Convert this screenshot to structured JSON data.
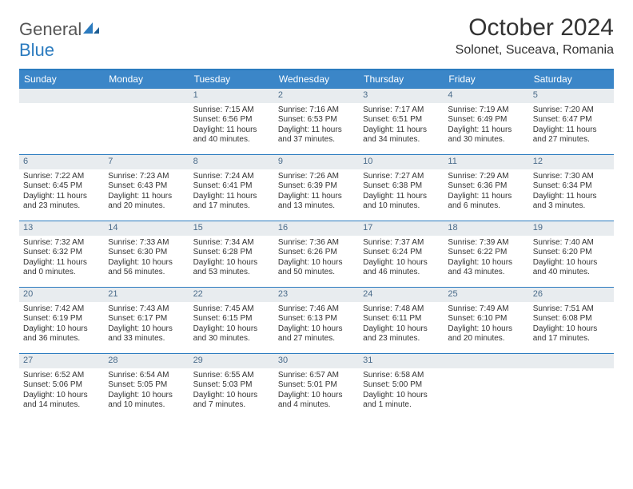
{
  "logo": {
    "text1": "General",
    "text2": "Blue"
  },
  "title": "October 2024",
  "location": "Solonet, Suceava, Romania",
  "colors": {
    "header_bg": "#3b86c8",
    "border": "#2b7bbf",
    "daynum_bg": "#e8ecef",
    "daynum_color": "#4a6b8a",
    "text": "#333333",
    "logo_gray": "#555555",
    "logo_blue": "#2b7bbf"
  },
  "day_headers": [
    "Sunday",
    "Monday",
    "Tuesday",
    "Wednesday",
    "Thursday",
    "Friday",
    "Saturday"
  ],
  "weeks": [
    [
      null,
      null,
      {
        "n": "1",
        "sunrise": "7:15 AM",
        "sunset": "6:56 PM",
        "dl": "11 hours and 40 minutes."
      },
      {
        "n": "2",
        "sunrise": "7:16 AM",
        "sunset": "6:53 PM",
        "dl": "11 hours and 37 minutes."
      },
      {
        "n": "3",
        "sunrise": "7:17 AM",
        "sunset": "6:51 PM",
        "dl": "11 hours and 34 minutes."
      },
      {
        "n": "4",
        "sunrise": "7:19 AM",
        "sunset": "6:49 PM",
        "dl": "11 hours and 30 minutes."
      },
      {
        "n": "5",
        "sunrise": "7:20 AM",
        "sunset": "6:47 PM",
        "dl": "11 hours and 27 minutes."
      }
    ],
    [
      {
        "n": "6",
        "sunrise": "7:22 AM",
        "sunset": "6:45 PM",
        "dl": "11 hours and 23 minutes."
      },
      {
        "n": "7",
        "sunrise": "7:23 AM",
        "sunset": "6:43 PM",
        "dl": "11 hours and 20 minutes."
      },
      {
        "n": "8",
        "sunrise": "7:24 AM",
        "sunset": "6:41 PM",
        "dl": "11 hours and 17 minutes."
      },
      {
        "n": "9",
        "sunrise": "7:26 AM",
        "sunset": "6:39 PM",
        "dl": "11 hours and 13 minutes."
      },
      {
        "n": "10",
        "sunrise": "7:27 AM",
        "sunset": "6:38 PM",
        "dl": "11 hours and 10 minutes."
      },
      {
        "n": "11",
        "sunrise": "7:29 AM",
        "sunset": "6:36 PM",
        "dl": "11 hours and 6 minutes."
      },
      {
        "n": "12",
        "sunrise": "7:30 AM",
        "sunset": "6:34 PM",
        "dl": "11 hours and 3 minutes."
      }
    ],
    [
      {
        "n": "13",
        "sunrise": "7:32 AM",
        "sunset": "6:32 PM",
        "dl": "11 hours and 0 minutes."
      },
      {
        "n": "14",
        "sunrise": "7:33 AM",
        "sunset": "6:30 PM",
        "dl": "10 hours and 56 minutes."
      },
      {
        "n": "15",
        "sunrise": "7:34 AM",
        "sunset": "6:28 PM",
        "dl": "10 hours and 53 minutes."
      },
      {
        "n": "16",
        "sunrise": "7:36 AM",
        "sunset": "6:26 PM",
        "dl": "10 hours and 50 minutes."
      },
      {
        "n": "17",
        "sunrise": "7:37 AM",
        "sunset": "6:24 PM",
        "dl": "10 hours and 46 minutes."
      },
      {
        "n": "18",
        "sunrise": "7:39 AM",
        "sunset": "6:22 PM",
        "dl": "10 hours and 43 minutes."
      },
      {
        "n": "19",
        "sunrise": "7:40 AM",
        "sunset": "6:20 PM",
        "dl": "10 hours and 40 minutes."
      }
    ],
    [
      {
        "n": "20",
        "sunrise": "7:42 AM",
        "sunset": "6:19 PM",
        "dl": "10 hours and 36 minutes."
      },
      {
        "n": "21",
        "sunrise": "7:43 AM",
        "sunset": "6:17 PM",
        "dl": "10 hours and 33 minutes."
      },
      {
        "n": "22",
        "sunrise": "7:45 AM",
        "sunset": "6:15 PM",
        "dl": "10 hours and 30 minutes."
      },
      {
        "n": "23",
        "sunrise": "7:46 AM",
        "sunset": "6:13 PM",
        "dl": "10 hours and 27 minutes."
      },
      {
        "n": "24",
        "sunrise": "7:48 AM",
        "sunset": "6:11 PM",
        "dl": "10 hours and 23 minutes."
      },
      {
        "n": "25",
        "sunrise": "7:49 AM",
        "sunset": "6:10 PM",
        "dl": "10 hours and 20 minutes."
      },
      {
        "n": "26",
        "sunrise": "7:51 AM",
        "sunset": "6:08 PM",
        "dl": "10 hours and 17 minutes."
      }
    ],
    [
      {
        "n": "27",
        "sunrise": "6:52 AM",
        "sunset": "5:06 PM",
        "dl": "10 hours and 14 minutes."
      },
      {
        "n": "28",
        "sunrise": "6:54 AM",
        "sunset": "5:05 PM",
        "dl": "10 hours and 10 minutes."
      },
      {
        "n": "29",
        "sunrise": "6:55 AM",
        "sunset": "5:03 PM",
        "dl": "10 hours and 7 minutes."
      },
      {
        "n": "30",
        "sunrise": "6:57 AM",
        "sunset": "5:01 PM",
        "dl": "10 hours and 4 minutes."
      },
      {
        "n": "31",
        "sunrise": "6:58 AM",
        "sunset": "5:00 PM",
        "dl": "10 hours and 1 minute."
      },
      null,
      null
    ]
  ],
  "labels": {
    "sunrise": "Sunrise: ",
    "sunset": "Sunset: ",
    "daylight": "Daylight: "
  }
}
